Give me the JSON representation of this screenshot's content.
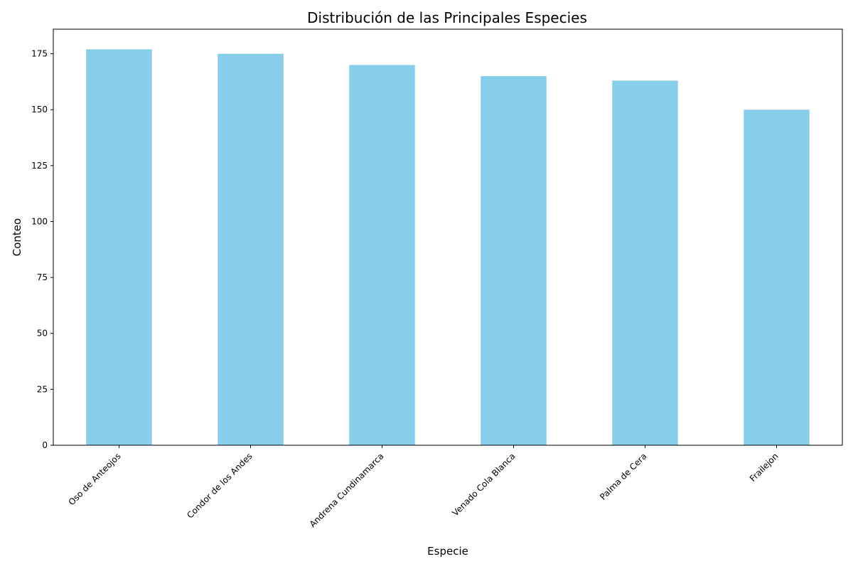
{
  "chart_data": {
    "type": "bar",
    "title": "Distribución de las Principales Especies",
    "xlabel": "Especie",
    "ylabel": "Conteo",
    "categories": [
      "Oso de Anteojos",
      "Condor de los Andes",
      "Andrena Cundinamarca",
      "Venado Cola Blanca",
      "Palma de Cera",
      "Frailejon"
    ],
    "values": [
      177,
      175,
      170,
      165,
      163,
      150
    ],
    "ylim": [
      0,
      186
    ],
    "yticks": [
      0,
      25,
      50,
      75,
      100,
      125,
      150,
      175
    ],
    "grid": false,
    "legend": "none",
    "bar_color": "#87ceeb",
    "xtick_rotation": "45deg right-aligned"
  }
}
